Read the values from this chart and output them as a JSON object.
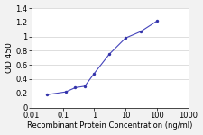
{
  "x": [
    0.031,
    0.125,
    0.25,
    0.5,
    1.0,
    3.0,
    10.0,
    30.0,
    100.0
  ],
  "y": [
    0.18,
    0.22,
    0.28,
    0.3,
    0.48,
    0.75,
    0.98,
    1.07,
    1.22
  ],
  "line_color": "#4444bb",
  "marker_color": "#3333aa",
  "xlabel": "Recombinant Protein Concentration (ng/ml)",
  "ylabel": "OD 450",
  "ylim": [
    0,
    1.4
  ],
  "yticks": [
    0,
    0.2,
    0.4,
    0.6,
    0.8,
    1.0,
    1.2,
    1.4
  ],
  "xticks": [
    0.01,
    0.1,
    1,
    10,
    100,
    1000
  ],
  "xtick_labels": [
    "0.01",
    "0.1",
    "1",
    "10",
    "100",
    "1000"
  ],
  "bg_color": "#f2f2f2",
  "plot_bg": "#ffffff",
  "xlabel_fontsize": 6.0,
  "ylabel_fontsize": 6.5,
  "tick_fontsize": 6.0,
  "grid_color": "#d0d0d0"
}
